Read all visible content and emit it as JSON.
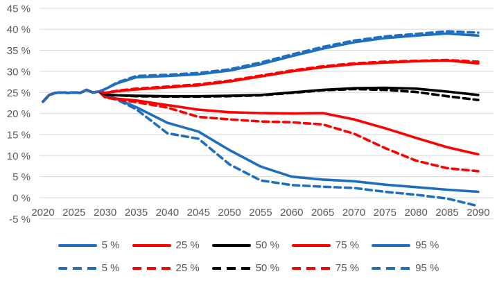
{
  "chart_data": {
    "type": "line",
    "title": "",
    "xlabel": "",
    "ylabel": "",
    "x": [
      2020,
      2021,
      2022,
      2023,
      2024,
      2025,
      2026,
      2027,
      2028,
      2029,
      2030,
      2032,
      2035,
      2040,
      2045,
      2050,
      2055,
      2060,
      2065,
      2070,
      2075,
      2080,
      2085,
      2090
    ],
    "x_tick_years": [
      2020,
      2025,
      2030,
      2035,
      2040,
      2045,
      2050,
      2055,
      2060,
      2065,
      2070,
      2075,
      2080,
      2085,
      2090
    ],
    "x_tick_labels": [
      "2020",
      "2025",
      "2030",
      "2035",
      "2040",
      "2045",
      "2050",
      "2055",
      "2060",
      "2065",
      "2070",
      "2075",
      "2080",
      "2085",
      "2090"
    ],
    "y_axis": {
      "min": -5,
      "max": 45,
      "step": 5
    },
    "y_tick_labels": [
      "45 %",
      "40 %",
      "35 %",
      "30 %",
      "25 %",
      "20 %",
      "15 %",
      "10 %",
      "5 %",
      "0 %",
      "-5 %"
    ],
    "grid": "horizontal",
    "legend_position": "bottom",
    "colors": {
      "blue": "#1F6FBE",
      "red": "#FF0000",
      "black": "#000000",
      "grid": "#D9D9D9",
      "tick_text": "#595959"
    },
    "series": [
      {
        "name": "5 %",
        "style": "solid",
        "color": "#1F6FBE",
        "values": [
          22.8,
          24.4,
          24.9,
          25.0,
          24.9,
          25.0,
          24.9,
          25.6,
          25.0,
          25.2,
          24.4,
          23.4,
          21.5,
          17.8,
          15.7,
          11.3,
          7.4,
          5.0,
          4.3,
          3.9,
          3.1,
          2.5,
          1.9,
          1.4
        ]
      },
      {
        "name": "25 %",
        "style": "solid",
        "color": "#FF0000",
        "values": [
          22.8,
          24.4,
          24.9,
          25.0,
          24.9,
          25.0,
          24.9,
          25.6,
          25.0,
          25.2,
          23.9,
          23.5,
          23.1,
          22.0,
          20.9,
          20.3,
          20.1,
          20.0,
          20.1,
          18.6,
          16.5,
          14.2,
          12.0,
          10.3
        ]
      },
      {
        "name": "50 %",
        "style": "solid",
        "color": "#000000",
        "values": [
          22.8,
          24.4,
          24.9,
          25.0,
          24.9,
          25.0,
          24.9,
          25.6,
          25.0,
          25.2,
          24.5,
          24.3,
          24.2,
          24.1,
          24.1,
          24.2,
          24.4,
          25.0,
          25.6,
          26.0,
          26.1,
          25.9,
          25.2,
          24.4
        ]
      },
      {
        "name": "75 %",
        "style": "solid",
        "color": "#FF0000",
        "values": [
          22.8,
          24.4,
          24.9,
          25.0,
          24.9,
          25.0,
          24.9,
          25.6,
          25.0,
          25.2,
          24.9,
          25.3,
          25.7,
          26.2,
          26.7,
          27.6,
          28.8,
          30.0,
          31.0,
          31.7,
          32.1,
          32.4,
          32.6,
          31.9
        ]
      },
      {
        "name": "95 %",
        "style": "solid",
        "color": "#1F6FBE",
        "values": [
          22.8,
          24.4,
          24.9,
          25.0,
          24.9,
          25.0,
          24.9,
          25.6,
          25.0,
          25.2,
          25.8,
          27.2,
          28.6,
          28.9,
          29.3,
          30.2,
          31.7,
          33.6,
          35.4,
          36.9,
          37.9,
          38.5,
          39.0,
          38.5
        ]
      },
      {
        "name": "5 %",
        "style": "dashed",
        "color": "#1F6FBE",
        "values": [
          22.8,
          24.4,
          24.9,
          25.0,
          24.9,
          25.0,
          24.9,
          25.6,
          25.0,
          25.2,
          24.3,
          23.2,
          21.0,
          15.3,
          14.0,
          7.9,
          4.1,
          3.0,
          2.6,
          2.3,
          1.4,
          0.7,
          -0.2,
          -2.0
        ]
      },
      {
        "name": "25 %",
        "style": "dashed",
        "color": "#FF0000",
        "values": [
          22.8,
          24.4,
          24.9,
          25.0,
          24.9,
          25.0,
          24.9,
          25.6,
          25.0,
          25.2,
          23.8,
          23.3,
          22.7,
          21.4,
          19.2,
          18.6,
          18.1,
          17.9,
          17.4,
          15.2,
          11.8,
          8.8,
          7.0,
          6.3
        ]
      },
      {
        "name": "50 %",
        "style": "dashed",
        "color": "#000000",
        "values": [
          22.8,
          24.4,
          24.9,
          25.0,
          24.9,
          25.0,
          24.9,
          25.6,
          25.0,
          25.2,
          24.5,
          24.3,
          24.1,
          24.0,
          24.0,
          24.1,
          24.3,
          24.9,
          25.5,
          25.8,
          25.6,
          25.1,
          24.1,
          23.2
        ]
      },
      {
        "name": "75 %",
        "style": "dashed",
        "color": "#FF0000",
        "values": [
          22.8,
          24.4,
          24.9,
          25.0,
          24.9,
          25.0,
          24.9,
          25.6,
          25.0,
          25.2,
          24.9,
          25.4,
          25.9,
          26.4,
          26.9,
          27.8,
          29.0,
          30.2,
          31.2,
          31.9,
          32.3,
          32.5,
          32.7,
          32.3
        ]
      },
      {
        "name": "95 %",
        "style": "dashed",
        "color": "#1F6FBE",
        "values": [
          22.8,
          24.4,
          24.9,
          25.0,
          24.9,
          25.0,
          24.9,
          25.6,
          25.0,
          25.2,
          25.8,
          27.4,
          28.9,
          29.2,
          29.6,
          30.5,
          32.1,
          34.0,
          35.8,
          37.3,
          38.3,
          38.9,
          39.5,
          39.2
        ]
      }
    ],
    "legend": {
      "rows": [
        {
          "style": "solid",
          "entries": [
            {
              "label": "5 %",
              "color": "#1F6FBE"
            },
            {
              "label": "25 %",
              "color": "#FF0000"
            },
            {
              "label": "50 %",
              "color": "#000000"
            },
            {
              "label": "75 %",
              "color": "#FF0000"
            },
            {
              "label": "95 %",
              "color": "#1F6FBE"
            }
          ]
        },
        {
          "style": "dashed",
          "entries": [
            {
              "label": "5 %",
              "color": "#1F6FBE"
            },
            {
              "label": "25 %",
              "color": "#FF0000"
            },
            {
              "label": "50 %",
              "color": "#000000"
            },
            {
              "label": "75 %",
              "color": "#FF0000"
            },
            {
              "label": "95 %",
              "color": "#1F6FBE"
            }
          ]
        }
      ]
    }
  }
}
